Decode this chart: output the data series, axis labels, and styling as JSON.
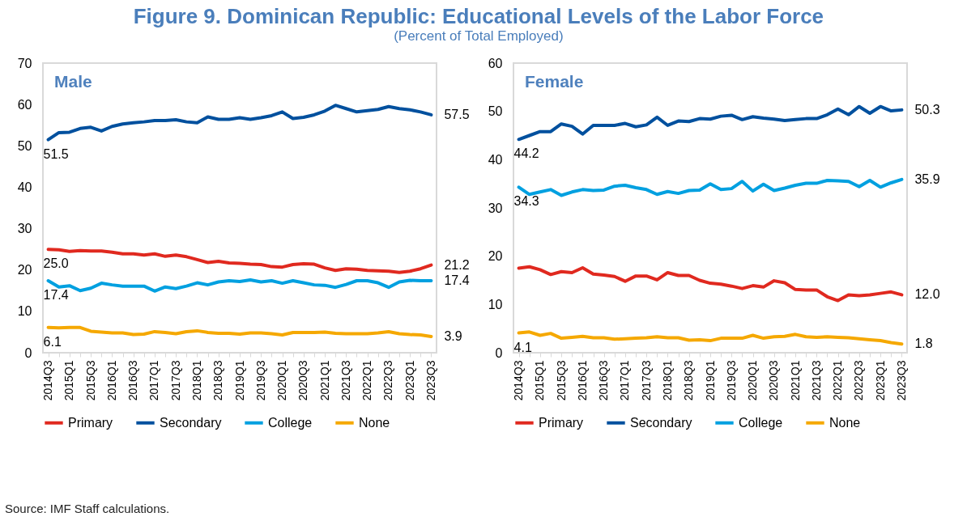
{
  "chart_data": [
    {
      "type": "line",
      "title": "Figure 9. Dominican Republic: Educational Levels of the Labor Force",
      "subtitle": "(Percent of Total Employed)",
      "categories": [
        "2014Q3",
        null,
        "2015Q1",
        null,
        "2015Q3",
        null,
        "2016Q1",
        null,
        "2016Q3",
        null,
        "2017Q1",
        null,
        "2017Q3",
        null,
        "2018Q1",
        null,
        "2018Q3",
        null,
        "2019Q1",
        null,
        "2019Q3",
        null,
        "2020Q1",
        null,
        "2020Q3",
        null,
        "2021Q1",
        null,
        "2021Q3",
        null,
        "2022Q1",
        null,
        "2022Q3",
        null,
        "2023Q1",
        null,
        "2023Q3"
      ],
      "series": [
        {
          "name": "Primary",
          "color": "#e0291f",
          "values": [
            25.0,
            24.9,
            24.5,
            24.7,
            24.6,
            24.6,
            24.3,
            23.9,
            23.9,
            23.6,
            23.9,
            23.3,
            23.6,
            23.2,
            22.5,
            21.8,
            22.1,
            21.7,
            21.6,
            21.4,
            21.3,
            20.8,
            20.7,
            21.3,
            21.5,
            21.4,
            20.5,
            19.9,
            20.3,
            20.2,
            19.9,
            19.8,
            19.7,
            19.4,
            19.7,
            20.3,
            21.2
          ]
        },
        {
          "name": "Secondary",
          "color": "#00509e",
          "values": [
            51.5,
            53.2,
            53.3,
            54.2,
            54.5,
            53.6,
            54.7,
            55.3,
            55.6,
            55.8,
            56.1,
            56.1,
            56.3,
            55.8,
            55.6,
            57.0,
            56.4,
            56.4,
            56.8,
            56.4,
            56.8,
            57.3,
            58.2,
            56.6,
            56.9,
            57.5,
            58.4,
            59.8,
            59.0,
            58.2,
            58.5,
            58.8,
            59.5,
            59.0,
            58.7,
            58.2,
            57.5
          ]
        },
        {
          "name": "College",
          "color": "#00a0e0",
          "values": [
            17.4,
            15.9,
            16.2,
            15.0,
            15.6,
            16.8,
            16.4,
            16.1,
            16.1,
            16.1,
            14.9,
            15.9,
            15.5,
            16.1,
            16.9,
            16.4,
            17.1,
            17.4,
            17.2,
            17.6,
            17.1,
            17.4,
            16.8,
            17.4,
            16.9,
            16.4,
            16.3,
            15.8,
            16.5,
            17.4,
            17.4,
            16.9,
            15.8,
            17.1,
            17.5,
            17.4,
            17.4
          ]
        },
        {
          "name": "None",
          "color": "#f5a800",
          "values": [
            6.1,
            6.0,
            6.1,
            6.1,
            5.2,
            5.0,
            4.8,
            4.8,
            4.4,
            4.5,
            5.1,
            4.9,
            4.6,
            5.1,
            5.3,
            4.9,
            4.7,
            4.7,
            4.5,
            4.8,
            4.8,
            4.6,
            4.3,
            4.9,
            4.9,
            4.9,
            5.0,
            4.7,
            4.6,
            4.6,
            4.6,
            4.8,
            5.1,
            4.6,
            4.4,
            4.3,
            3.9
          ]
        }
      ],
      "ylim": [
        0,
        70
      ],
      "yticks": [
        0,
        10,
        20,
        30,
        40,
        50,
        60,
        70
      ],
      "grid": false,
      "legend": "bottom",
      "annotations": [
        "Male",
        "Source: IMF Staff calculations.",
        {
          "text": "51.5",
          "x": "2014Q3",
          "y": 51.5
        },
        {
          "text": "25.0",
          "x": "2014Q3",
          "y": 25.0
        },
        {
          "text": "17.4",
          "x": "2014Q3",
          "y": 17.4
        },
        {
          "text": "6.1",
          "x": "2014Q3",
          "y": 6.1
        },
        {
          "text": "57.5",
          "x": "2023Q3",
          "y": 57.5
        },
        {
          "text": "21.2",
          "x": "2023Q3",
          "y": 21.2
        },
        {
          "text": "17.4",
          "x": "2023Q3",
          "y": 17.4
        },
        {
          "text": "3.9",
          "x": "2023Q3",
          "y": 3.9
        }
      ]
    },
    {
      "type": "line",
      "categories": [
        "2014Q3",
        null,
        "2015Q1",
        null,
        "2015Q3",
        null,
        "2016Q1",
        null,
        "2016Q3",
        null,
        "2017Q1",
        null,
        "2017Q3",
        null,
        "2018Q1",
        null,
        "2018Q3",
        null,
        "2019Q1",
        null,
        "2019Q3",
        null,
        "2020Q1",
        null,
        "2020Q3",
        null,
        "2021Q1",
        null,
        "2021Q3",
        null,
        "2022Q1",
        null,
        "2022Q3",
        null,
        "2023Q1",
        null,
        "2023Q3"
      ],
      "series": [
        {
          "name": "Primary",
          "color": "#e0291f",
          "values": [
            17.5,
            17.8,
            17.2,
            16.2,
            16.8,
            16.6,
            17.6,
            16.3,
            16.1,
            15.8,
            14.8,
            15.9,
            15.9,
            15.1,
            16.6,
            16.0,
            16.0,
            15.0,
            14.4,
            14.2,
            13.8,
            13.3,
            13.9,
            13.6,
            14.9,
            14.5,
            13.1,
            13.0,
            13.0,
            11.6,
            10.8,
            12.0,
            11.8,
            12.0,
            12.3,
            12.6,
            12.0
          ]
        },
        {
          "name": "Secondary",
          "color": "#00509e",
          "values": [
            44.2,
            45.0,
            45.8,
            45.8,
            47.4,
            46.9,
            45.3,
            47.1,
            47.1,
            47.1,
            47.5,
            46.8,
            47.2,
            48.8,
            47.1,
            48.0,
            47.9,
            48.5,
            48.4,
            49.0,
            49.2,
            48.3,
            48.9,
            48.6,
            48.4,
            48.1,
            48.3,
            48.5,
            48.5,
            49.3,
            50.5,
            49.3,
            51.0,
            49.6,
            51.0,
            50.1,
            50.3
          ]
        },
        {
          "name": "College",
          "color": "#00a0e0",
          "values": [
            34.3,
            32.8,
            33.3,
            33.8,
            32.6,
            33.3,
            33.8,
            33.6,
            33.7,
            34.5,
            34.7,
            34.2,
            33.8,
            32.8,
            33.4,
            33.0,
            33.6,
            33.7,
            35.0,
            33.8,
            34.0,
            35.5,
            33.5,
            34.9,
            33.6,
            34.1,
            34.7,
            35.1,
            35.1,
            35.7,
            35.6,
            35.5,
            34.4,
            35.7,
            34.3,
            35.2,
            35.9
          ]
        },
        {
          "name": "None",
          "color": "#f5a800",
          "values": [
            4.1,
            4.3,
            3.6,
            4.0,
            3.0,
            3.2,
            3.4,
            3.1,
            3.1,
            2.8,
            2.9,
            3.0,
            3.1,
            3.3,
            3.1,
            3.1,
            2.6,
            2.7,
            2.5,
            3.0,
            3.0,
            3.0,
            3.6,
            3.0,
            3.3,
            3.4,
            3.8,
            3.3,
            3.2,
            3.3,
            3.2,
            3.1,
            2.9,
            2.7,
            2.5,
            2.1,
            1.8
          ]
        }
      ],
      "ylim": [
        0,
        60
      ],
      "yticks": [
        0,
        10,
        20,
        30,
        40,
        50,
        60
      ],
      "grid": false,
      "legend": "bottom",
      "annotations": [
        "Female",
        {
          "text": "44.2",
          "x": "2014Q3",
          "y": 44.2
        },
        {
          "text": "34.3",
          "x": "2014Q3",
          "y": 34.3
        },
        {
          "text": "4.1",
          "x": "2014Q3",
          "y": 4.1
        },
        {
          "text": "50.3",
          "x": "2023Q3",
          "y": 50.3
        },
        {
          "text": "35.9",
          "x": "2023Q3",
          "y": 35.9
        },
        {
          "text": "12.0",
          "x": "2023Q3",
          "y": 12.0
        },
        {
          "text": "1.8",
          "x": "2023Q3",
          "y": 1.8
        }
      ]
    }
  ]
}
